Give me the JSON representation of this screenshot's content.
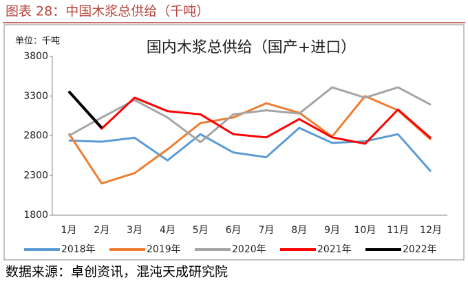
{
  "caption": "图表 28：中国木浆总供给（千吨）",
  "source": "数据来源：卓创资讯，混沌天成研究院",
  "chart_data": {
    "type": "line",
    "title": "国内木浆总供给（国产+进口）",
    "unit_label": "单位：千吨",
    "categories": [
      "1月",
      "2月",
      "3月",
      "4月",
      "5月",
      "6月",
      "7月",
      "8月",
      "9月",
      "10月",
      "11月",
      "12月"
    ],
    "ylim": [
      1800,
      3800
    ],
    "yticks": [
      1800,
      2300,
      2800,
      3300,
      3800
    ],
    "grid": false,
    "legend": "bottom",
    "series": [
      {
        "name": "2018年",
        "color": "#5b9bd5",
        "values": [
          2740,
          2725,
          2775,
          2490,
          2820,
          2590,
          2530,
          2900,
          2710,
          2730,
          2820,
          2350
        ]
      },
      {
        "name": "2019年",
        "color": "#ed7d31",
        "values": [
          2830,
          2200,
          2330,
          2630,
          2960,
          3030,
          3210,
          3090,
          2790,
          3300,
          3120,
          2750
        ]
      },
      {
        "name": "2020年",
        "color": "#a5a5a5",
        "values": [
          2800,
          3030,
          3250,
          3030,
          2720,
          3070,
          3120,
          3080,
          3410,
          3280,
          3410,
          3190
        ]
      },
      {
        "name": "2021年",
        "color": "#ff0000",
        "values": [
          3360,
          2890,
          3280,
          3110,
          3070,
          2820,
          2780,
          3010,
          2780,
          2700,
          3130,
          2770
        ]
      },
      {
        "name": "2022年",
        "color": "#000000",
        "values": [
          3360,
          2900,
          null,
          null,
          null,
          null,
          null,
          null,
          null,
          null,
          null,
          null
        ]
      }
    ]
  }
}
